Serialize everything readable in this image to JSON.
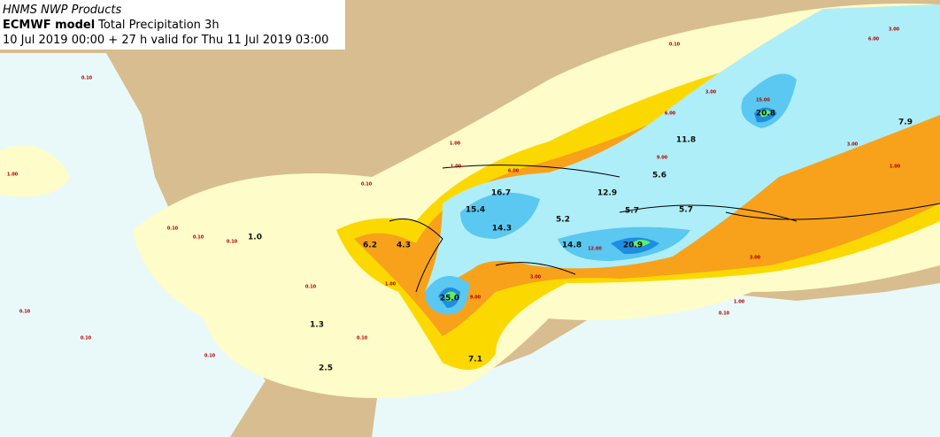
{
  "header": {
    "title": "HNMS NWP Products",
    "model": "ECMWF model",
    "product": "Total Precipitation 3h",
    "validity": "10 Jul 2019 00:00 + 27 h valid for Thu 11 Jul 2019 03:00"
  },
  "maxima": [
    "1.0",
    "6.2",
    "4.3",
    "15.4",
    "16.7",
    "14.3",
    "12.9",
    "5.2",
    "5.6",
    "5.7",
    "5.7",
    "11.8",
    "20.8",
    "7.9",
    "14.8",
    "20.9",
    "25.0",
    "1.3",
    "2.5",
    "7.1"
  ],
  "contour_labels": [
    "0.10",
    "0.10",
    "0.10",
    "0.10",
    "0.10",
    "0.10",
    "0.10",
    "0.10",
    "0.10",
    "0.10",
    "0.10",
    "0.10",
    "1.00",
    "1.00",
    "1.00",
    "1.00",
    "1.00",
    "1.00",
    "3.00",
    "3.00",
    "3.00",
    "3.00",
    "3.00",
    "6.00",
    "6.00",
    "6.00",
    "9.00",
    "9.00",
    "12.00",
    "15.00"
  ]
}
